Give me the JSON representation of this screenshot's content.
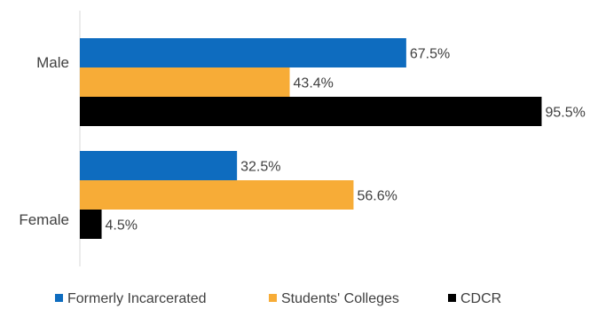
{
  "chart_data": {
    "type": "bar",
    "orientation": "horizontal",
    "categories": [
      "Male",
      "Female"
    ],
    "series": [
      {
        "name": "Formerly Incarcerated",
        "values": [
          67.5,
          32.5
        ],
        "labels": [
          "67.5%",
          "32.5%"
        ],
        "color": "#0e6cbf"
      },
      {
        "name": "Students' Colleges",
        "values": [
          43.4,
          56.6
        ],
        "labels": [
          "43.4%",
          "56.6%"
        ],
        "color": "#f7ac37"
      },
      {
        "name": "CDCR",
        "values": [
          95.5,
          4.5
        ],
        "labels": [
          "95.5%",
          "4.5%"
        ],
        "color": "#000000"
      }
    ],
    "title": "",
    "xlabel": "",
    "ylabel": "",
    "xlim": [
      0,
      100
    ],
    "grid": false,
    "legend_position": "bottom",
    "value_unit": "%"
  },
  "colors": {
    "label_text": "#404040",
    "axis_line": "#d9d9d9"
  }
}
